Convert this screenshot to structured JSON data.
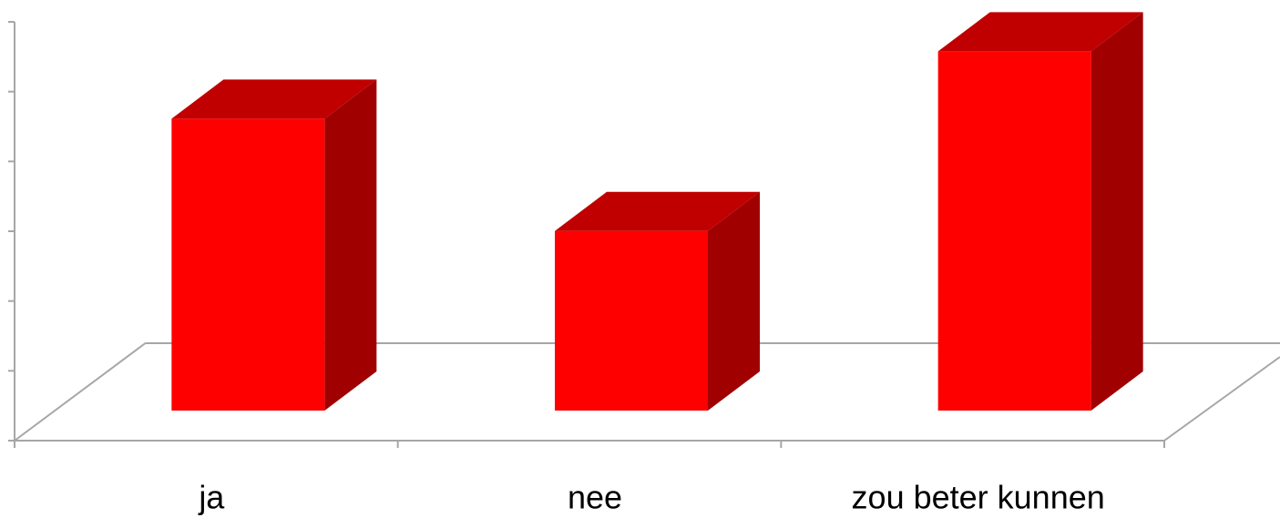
{
  "chart_data": {
    "type": "bar3d",
    "categories": [
      "ja",
      "nee",
      "zou beter kunnen"
    ],
    "values": [
      13,
      8,
      16
    ],
    "color": "#ff0000",
    "top_color": "#c00000",
    "side_color": "#a00000",
    "ylim": [
      0,
      18
    ],
    "yticks": [
      0,
      3,
      6,
      9,
      12,
      15,
      18
    ],
    "grid": false
  }
}
